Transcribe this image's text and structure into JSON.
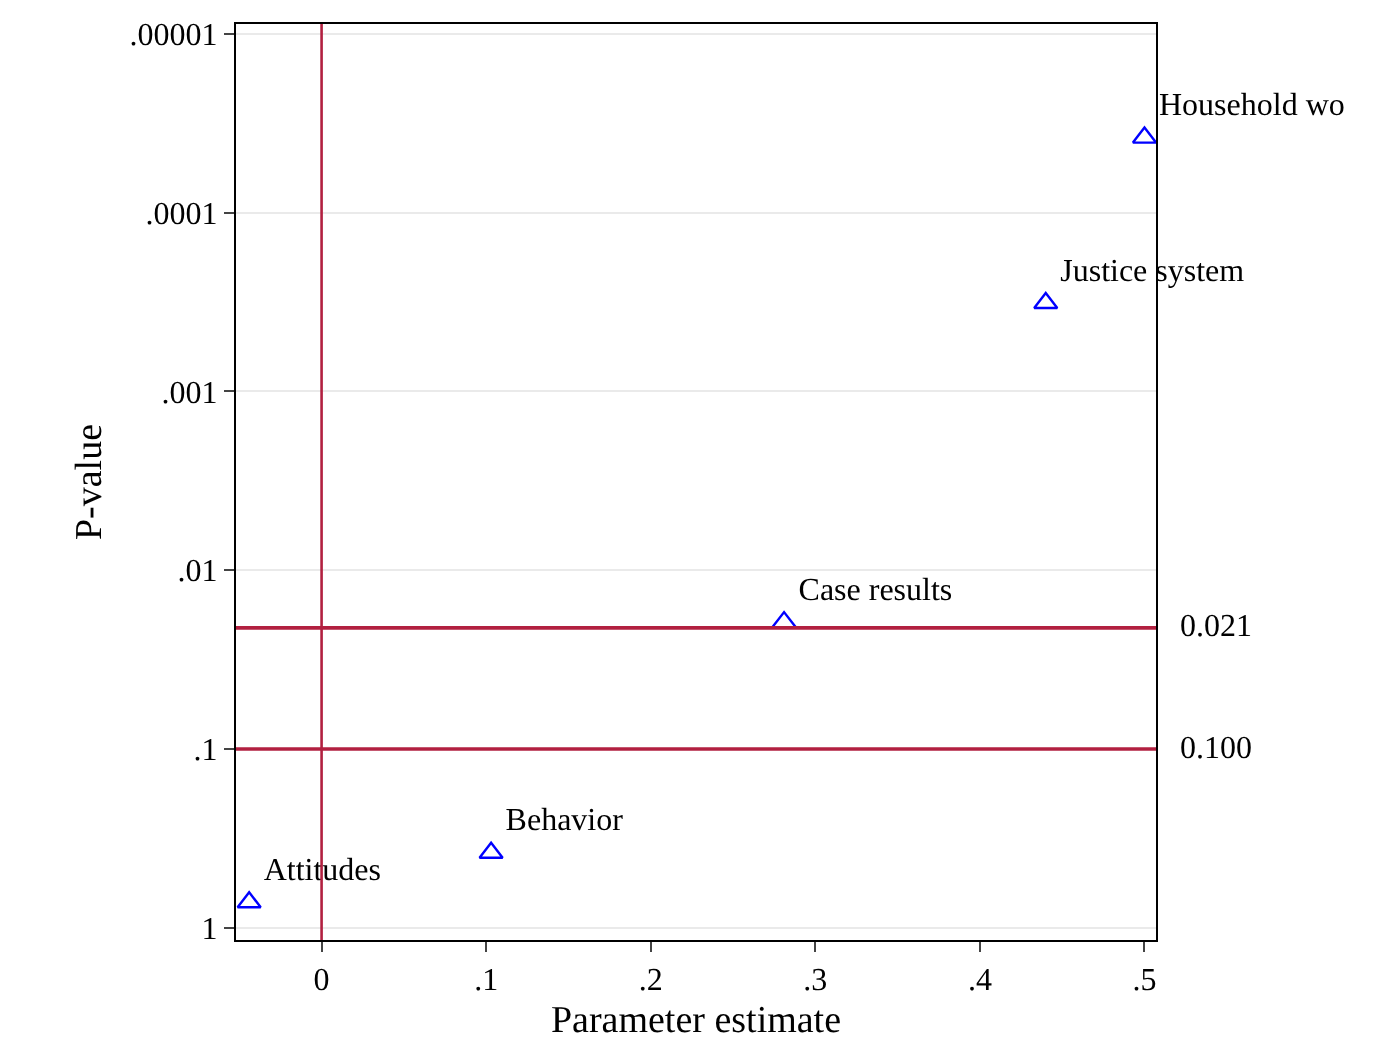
{
  "chart_data": {
    "type": "scatter",
    "xlabel": "Parameter estimate",
    "ylabel": "P-value",
    "log": "y",
    "marker": "triangle",
    "grid": "y",
    "legend": false,
    "series": [
      {
        "name": "Attitudes",
        "color": "#0000ff",
        "x": [
          -0.044
        ],
        "values": [
          0.72
        ]
      },
      {
        "name": "Behavior",
        "color": "#0000ff",
        "x": [
          0.103
        ],
        "values": [
          0.38
        ]
      },
      {
        "name": "Case results",
        "color": "#0000ff",
        "x": [
          0.281
        ],
        "values": [
          0.0195
        ]
      },
      {
        "name": "Justice system",
        "color": "#0000ff",
        "x": [
          0.44
        ],
        "values": [
          0.00032
        ]
      },
      {
        "name": "Household wo",
        "color": "#0000ff",
        "x": [
          0.5
        ],
        "values": [
          3.8e-05
        ]
      }
    ],
    "xlim": [
      -0.052,
      0.507
    ],
    "xticks": [
      {
        "value": 0,
        "label": "0"
      },
      {
        "value": 0.1,
        "label": ".1"
      },
      {
        "value": 0.2,
        "label": ".2"
      },
      {
        "value": 0.3,
        "label": ".3"
      },
      {
        "value": 0.4,
        "label": ".4"
      },
      {
        "value": 0.5,
        "label": ".5"
      }
    ],
    "ylim": [
      1.17,
      8.8e-06
    ],
    "yticks": [
      {
        "value": 1,
        "label": "1"
      },
      {
        "value": 0.1,
        "label": ".1"
      },
      {
        "value": 0.01,
        "label": ".01"
      },
      {
        "value": 0.001,
        "label": ".001"
      },
      {
        "value": 0.0001,
        "label": ".0001"
      },
      {
        "value": 1e-05,
        "label": ".00001"
      }
    ],
    "ref_lines": [
      {
        "axis": "x",
        "value": 0,
        "label": null,
        "color": "#b22040"
      },
      {
        "axis": "y",
        "value": 0.021,
        "label": "0.021",
        "color": "#b22040"
      },
      {
        "axis": "y",
        "value": 0.1,
        "label": "0.100",
        "color": "#b22040"
      }
    ]
  }
}
